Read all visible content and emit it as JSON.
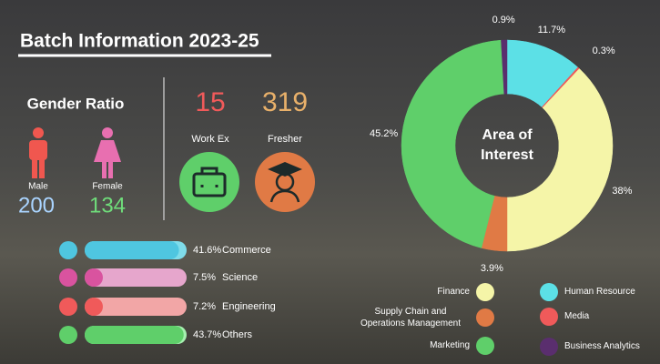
{
  "header": {
    "title": "Batch Information 2023-25"
  },
  "gender": {
    "title": "Gender Ratio",
    "male_label": "Male",
    "male_count": 200,
    "female_label": "Female",
    "female_count": 134
  },
  "experience": {
    "workex_count": 15,
    "workex_label": "Work Ex",
    "fresher_count": 319,
    "fresher_label": "Fresher"
  },
  "chart_data": [
    {
      "type": "donut",
      "center_label": "Area of Interest",
      "series": [
        {
          "name": "Human Resource",
          "color": "#5ce0e6",
          "value": 11.7,
          "value_label": "11.7%"
        },
        {
          "name": "Media",
          "color": "#f05a5a",
          "value": 0.3,
          "value_label": "0.3%"
        },
        {
          "name": "Finance",
          "color": "#f5f5a8",
          "value": 38,
          "value_label": "38%"
        },
        {
          "name": "Supply Chain and Operations Management",
          "color": "#e07a45",
          "value": 3.9,
          "value_label": "3.9%"
        },
        {
          "name": "Marketing",
          "color": "#5fcf6a",
          "value": 45.2,
          "value_label": "45.2%"
        },
        {
          "name": "Business Analytics",
          "color": "#5a2e6e",
          "value": 0.9,
          "value_label": "0.9%"
        }
      ]
    },
    {
      "type": "bar",
      "categories": [
        "Commerce",
        "Science",
        "Engineering",
        "Others"
      ],
      "values": [
        41.6,
        7.5,
        7.2,
        43.7
      ],
      "value_labels": [
        "41.6%",
        "7.5%",
        "7.2%",
        "43.7%"
      ],
      "colors": [
        "#4fc6e0",
        "#d9539f",
        "#f05a5a",
        "#5fcf6a"
      ],
      "track_colors": [
        "#7fdcea",
        "#e6a6cc",
        "#f2a6a6",
        "#a6f0b0"
      ]
    }
  ]
}
